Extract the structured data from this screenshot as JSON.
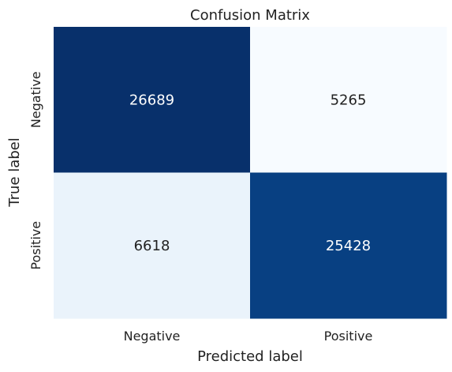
{
  "chart_data": {
    "type": "heatmap",
    "title": "Confusion Matrix",
    "xlabel": "Predicted label",
    "ylabel": "True label",
    "x_categories": [
      "Negative",
      "Positive"
    ],
    "y_categories": [
      "Negative",
      "Positive"
    ],
    "values": [
      [
        26689,
        5265
      ],
      [
        6618,
        25428
      ]
    ],
    "colormap": "Blues",
    "colors": {
      "low": "#f7fbff",
      "high": "#08306b",
      "text_dark": "#222222",
      "text_light": "#ffffff"
    },
    "grid": false,
    "colorbar": false
  }
}
